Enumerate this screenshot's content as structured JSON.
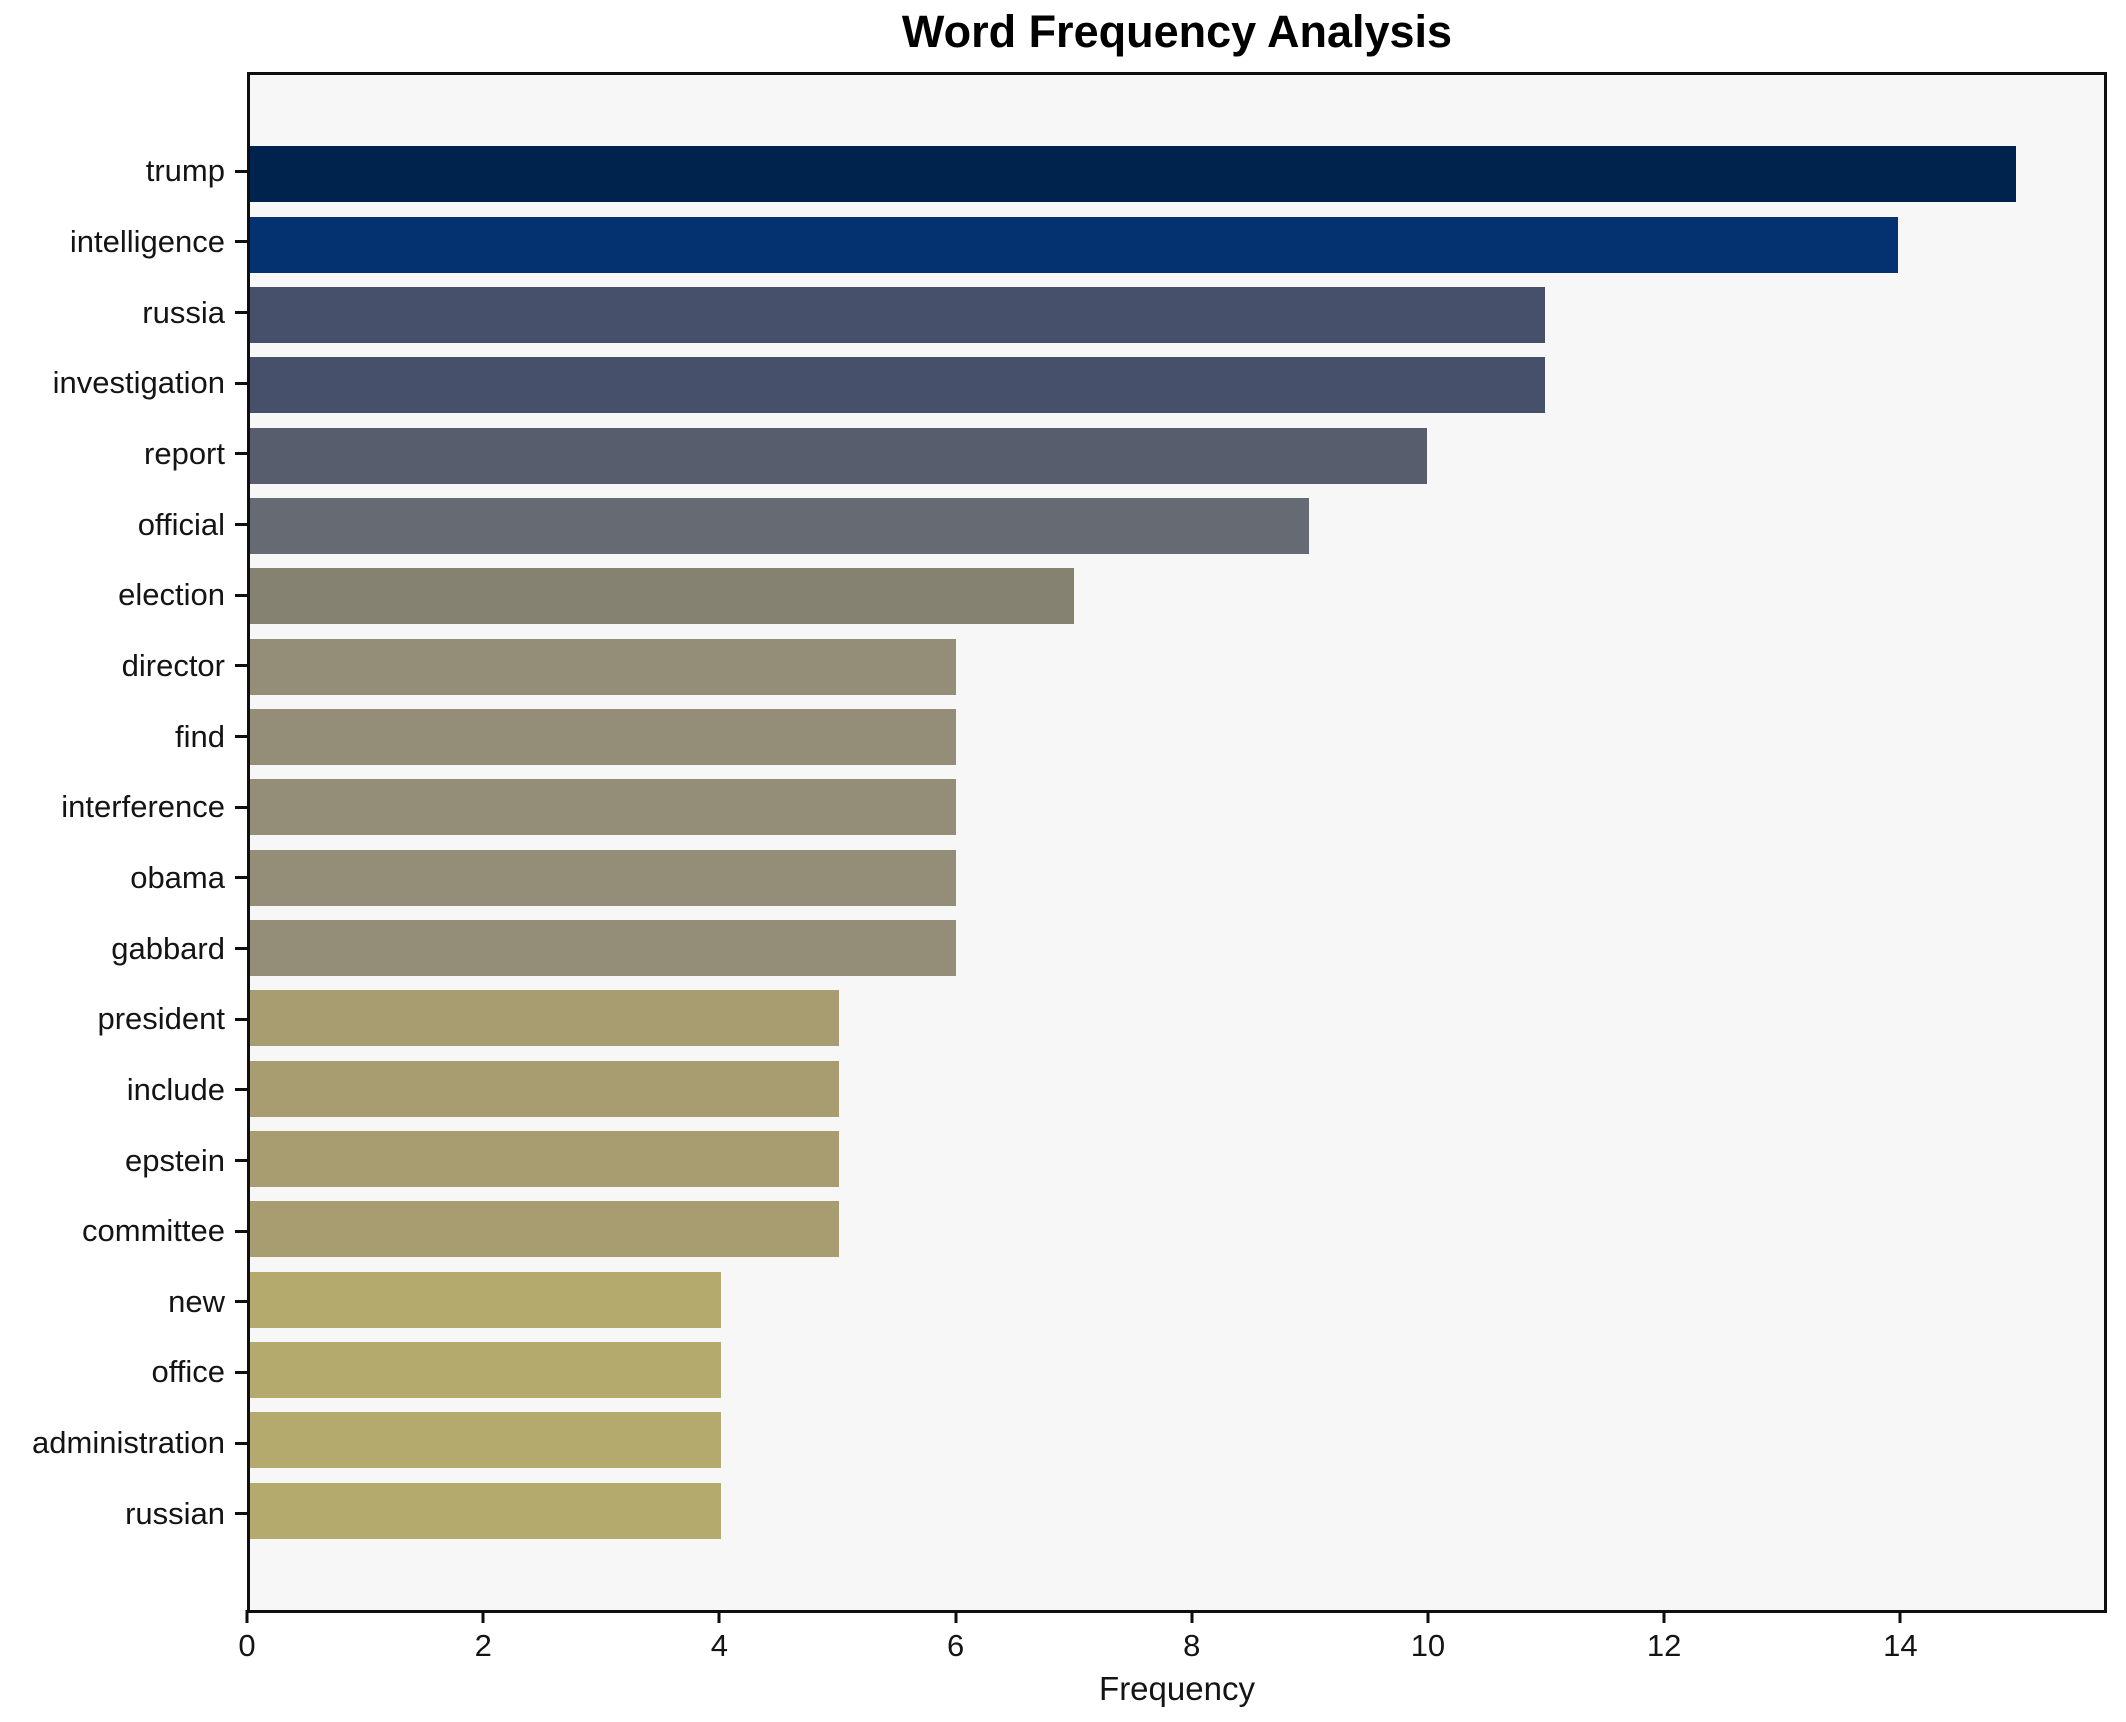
{
  "title": "Word Frequency Analysis",
  "xlabel": "Frequency",
  "chart_data": {
    "type": "bar",
    "orientation": "horizontal",
    "title": "Word Frequency Analysis",
    "xlabel": "Frequency",
    "ylabel": "",
    "categories": [
      "trump",
      "intelligence",
      "russia",
      "investigation",
      "report",
      "official",
      "election",
      "director",
      "find",
      "interference",
      "obama",
      "gabbard",
      "president",
      "include",
      "epstein",
      "committee",
      "new",
      "office",
      "administration",
      "russian"
    ],
    "values": [
      15,
      14,
      11,
      11,
      10,
      9,
      7,
      6,
      6,
      6,
      6,
      6,
      5,
      5,
      5,
      5,
      4,
      4,
      4,
      4
    ],
    "bar_colors": [
      "#00234e",
      "#04316f",
      "#46506b",
      "#46506b",
      "#575d6d",
      "#666a73",
      "#868271",
      "#948e78",
      "#948e78",
      "#948e78",
      "#948e78",
      "#948e78",
      "#a79d70",
      "#a79d70",
      "#a79d70",
      "#a79d70",
      "#b5aa6d",
      "#b5aa6d",
      "#b5aa6d",
      "#b5aa6d"
    ],
    "xlim": [
      0,
      15.75
    ],
    "x_ticks": [
      0,
      2,
      4,
      6,
      8,
      10,
      12,
      14
    ],
    "grid": false,
    "legend_position": "none",
    "colormap": "cividis",
    "plot_bg": "#f7f7f8",
    "fig_bg": "#ffffff",
    "spine_color": "#0e0e0e"
  }
}
